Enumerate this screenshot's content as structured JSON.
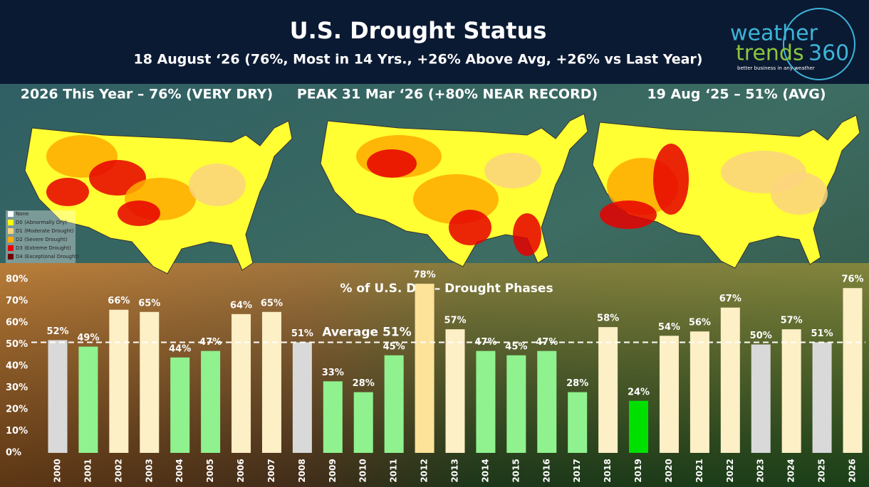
{
  "header": {
    "title": "U.S. Drought Status",
    "subtitle": "18 August ‘26 (76%, Most in 14 Yrs., +26% Above Avg, +26% vs Last Year)"
  },
  "logo": {
    "line1": "weather",
    "line2": "trends",
    "line3": "360",
    "tagline": "better business in any weather"
  },
  "maps": [
    {
      "caption": "2026 This Year – 76% (VERY DRY)"
    },
    {
      "caption": "PEAK 31 Mar ‘26 (+80% NEAR RECORD)"
    },
    {
      "caption": "19 Aug ‘25 – 51% (AVG)"
    }
  ],
  "map_legend": [
    {
      "name": "None",
      "color": "#ffffff"
    },
    {
      "name": "D0 (Abnormally Dry)",
      "color": "#ffff00"
    },
    {
      "name": "D1 (Moderate Drought)",
      "color": "#fcd37f"
    },
    {
      "name": "D2 (Severe Drought)",
      "color": "#ffaa00"
    },
    {
      "name": "D3 (Extreme Drought)",
      "color": "#e60000"
    },
    {
      "name": "D4 (Exceptional Drought)",
      "color": "#730000"
    }
  ],
  "chart_data": {
    "type": "bar",
    "title": "% of U.S. Dry – Drought Phases",
    "categories": [
      "2000",
      "2001",
      "2002",
      "2003",
      "2004",
      "2005",
      "2006",
      "2007",
      "2008",
      "2009",
      "2010",
      "2011",
      "2012",
      "2013",
      "2014",
      "2015",
      "2016",
      "2017",
      "2018",
      "2019",
      "2020",
      "2021",
      "2022",
      "2023",
      "2024",
      "2025",
      "2026"
    ],
    "values": [
      52,
      49,
      66,
      65,
      44,
      47,
      64,
      65,
      51,
      33,
      28,
      45,
      78,
      57,
      47,
      45,
      47,
      28,
      58,
      24,
      54,
      56,
      67,
      50,
      57,
      51,
      76
    ],
    "value_labels": [
      "52%",
      "49%",
      "66%",
      "65%",
      "44%",
      "47%",
      "64%",
      "65%",
      "51%",
      "33%",
      "28%",
      "45%",
      "78%",
      "57%",
      "47%",
      "45%",
      "47%",
      "28%",
      "58%",
      "24%",
      "54%",
      "56%",
      "67%",
      "50%",
      "57%",
      "51%",
      "76%"
    ],
    "colors": [
      "#d9d9d9",
      "#8ff28f",
      "#fdefc6",
      "#fdefc6",
      "#8ff28f",
      "#8ff28f",
      "#fdefc6",
      "#fdefc6",
      "#d9d9d9",
      "#8ff28f",
      "#8ff28f",
      "#8ff28f",
      "#fde29a",
      "#fdefc6",
      "#8ff28f",
      "#8ff28f",
      "#8ff28f",
      "#8ff28f",
      "#fdefc6",
      "#00e000",
      "#fdefc6",
      "#fdefc6",
      "#fdefc6",
      "#d9d9d9",
      "#fdefc6",
      "#d9d9d9",
      "#fdefc6"
    ],
    "ylim": [
      0,
      80
    ],
    "yticks": [
      {
        "value": 0,
        "label": "0%"
      },
      {
        "value": 10,
        "label": "10%"
      },
      {
        "value": 20,
        "label": "20%"
      },
      {
        "value": 30,
        "label": "30%"
      },
      {
        "value": 40,
        "label": "40%"
      },
      {
        "value": 50,
        "label": "50%"
      },
      {
        "value": 60,
        "label": "60%"
      },
      {
        "value": 70,
        "label": "70%"
      },
      {
        "value": 80,
        "label": "80%"
      }
    ],
    "average": 51,
    "average_label": "Average 51%"
  }
}
